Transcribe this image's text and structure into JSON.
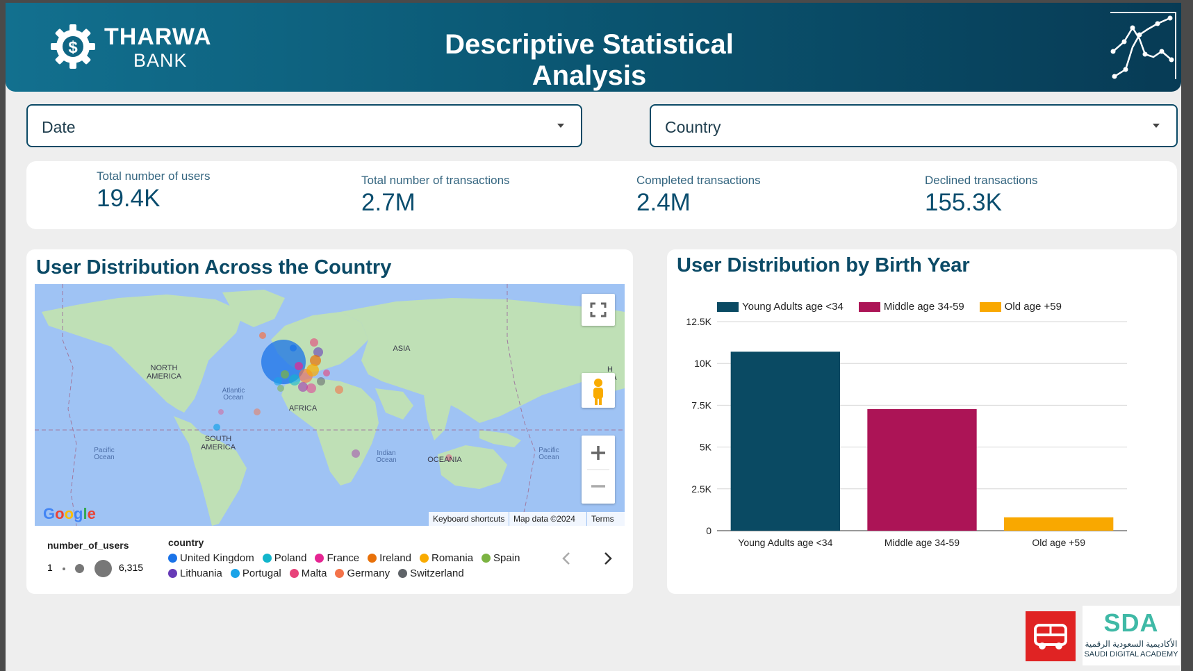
{
  "header": {
    "brand_name": "THARWA",
    "brand_sub": "BANK",
    "title": "Descriptive Statistical Analysis",
    "colors": {
      "gradient_start": "#12708f",
      "gradient_end": "#073b55"
    }
  },
  "filters": {
    "date_label": "Date",
    "country_label": "Country"
  },
  "kpis": [
    {
      "label": "Total number of users",
      "value": "19.4K"
    },
    {
      "label": "Total number of transactions",
      "value": "2.7M"
    },
    {
      "label": "Completed transactions",
      "value": "2.4M"
    },
    {
      "label": "Declined transactions",
      "value": "155.3K"
    }
  ],
  "map_card": {
    "title": "User Distribution Across the Country",
    "labels": {
      "north_america": [
        "NORTH",
        "AMERICA"
      ],
      "south_america": [
        "SOUTH",
        "AMERICA"
      ],
      "asia": "ASIA",
      "africa": "AFRICA",
      "oceania": "OCEANIA",
      "atlantic": [
        "Atlantic",
        "Ocean"
      ],
      "indian": [
        "Indian",
        "Ocean"
      ],
      "pacific_left": [
        "Pacific",
        "Ocean"
      ],
      "pacific_right": [
        "Pacific",
        "Ocean"
      ],
      "cut_right": [
        "H",
        "CA"
      ]
    },
    "google_logo": "Google",
    "attribution": {
      "keyboard": "Keyboard shortcuts",
      "mapdata": "Map data ©2024",
      "terms": "Terms"
    },
    "size_legend": {
      "title": "number_of_users",
      "min": "1",
      "max": "6,315"
    },
    "country_legend": {
      "title": "country",
      "items": [
        {
          "name": "United Kingdom",
          "color": "#1a73e8"
        },
        {
          "name": "Poland",
          "color": "#12b5cb"
        },
        {
          "name": "France",
          "color": "#e52592"
        },
        {
          "name": "Ireland",
          "color": "#e8710a"
        },
        {
          "name": "Romania",
          "color": "#f9ab00"
        },
        {
          "name": "Spain",
          "color": "#7cb342"
        },
        {
          "name": "Lithuania",
          "color": "#673ab7"
        },
        {
          "name": "Portugal",
          "color": "#1aa3e8"
        },
        {
          "name": "Malta",
          "color": "#e8437a"
        },
        {
          "name": "Germany",
          "color": "#f4734a"
        },
        {
          "name": "Switzerland",
          "color": "#5f6368"
        }
      ]
    }
  },
  "bar_card": {
    "title": "User Distribution by Birth Year"
  },
  "chart_data": {
    "type": "bar",
    "title": "User Distribution by Birth Year",
    "categories": [
      "Young Adults age <34",
      "Middle age 34-59",
      "Old age +59"
    ],
    "values": [
      10700,
      7270,
      800
    ],
    "colors": [
      "#0a4a63",
      "#ac1456",
      "#f9a800"
    ],
    "legend": [
      "Young Adults age <34",
      "Middle age 34-59",
      "Old age +59"
    ],
    "legend_position": "top-left",
    "ylim": [
      0,
      12500
    ],
    "yticks": [
      0,
      2500,
      5000,
      7500,
      10000,
      12500
    ],
    "ytick_labels": [
      "0",
      "2.5K",
      "5K",
      "7.5K",
      "10K",
      "12.5K"
    ],
    "grid": true,
    "xlabel": "",
    "ylabel": ""
  },
  "footer": {
    "sda_mark": "SDA",
    "sda_arabic": "الأكاديمية السعودية الرقمية",
    "sda_english": "SAUDI DIGITAL ACADEMY"
  }
}
